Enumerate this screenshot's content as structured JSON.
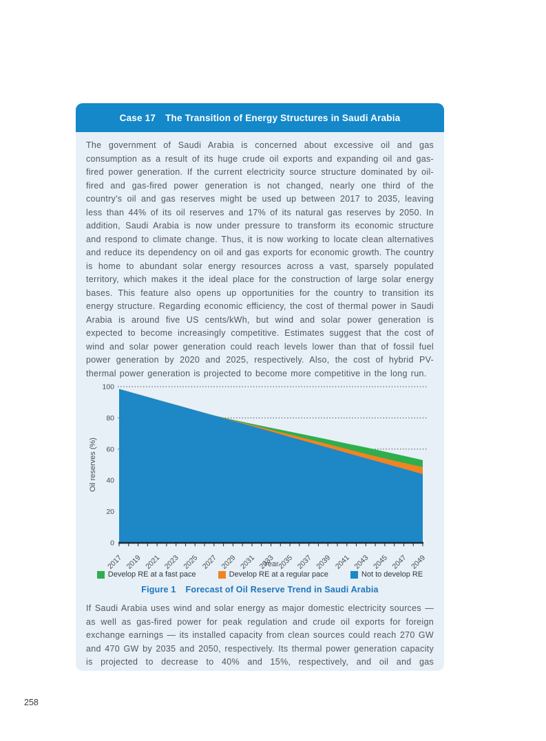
{
  "page": {
    "number": "258"
  },
  "card": {
    "header": {
      "case_label": "Case 17",
      "title": "The Transition of Energy Structures in Saudi Arabia"
    },
    "paragraph1": "The government of Saudi Arabia is concerned about excessive oil and gas consumption as a result of its huge crude oil exports and expanding oil and gas-fired power generation. If the current electricity source structure dominated by oil-fired and gas-fired power generation is not changed, nearly one third of the country's oil and gas reserves might be used up between 2017 to 2035, leaving less than 44% of its oil reserves and 17% of its natural gas reserves by 2050. In addition, Saudi Arabia is now under pressure to transform its economic structure and respond to climate change. Thus, it is now working to locate clean alternatives and reduce its dependency on oil and gas exports for economic growth. The country is home to abundant solar energy resources across a vast, sparsely populated territory, which makes it the ideal place for the construction of large solar energy bases. This feature also opens up opportunities for the country to transition its energy structure. Regarding economic efficiency, the cost of thermal power in Saudi Arabia is around five US cents/kWh, but wind and solar power generation is expected to become increasingly competitive. Estimates suggest that the cost of wind and solar power generation could reach levels lower than that of fossil fuel power generation by 2020 and 2025, respectively. Also, the cost of hybrid PV-thermal power generation is projected to become more competitive in the long run.",
    "figure_caption": {
      "label": "Figure 1",
      "title": "Forecast of Oil Reserve Trend in Saudi Arabia"
    },
    "paragraph2": "If Saudi Arabia uses wind and solar energy as major domestic electricity sources — as well as gas-fired power for peak regulation and crude oil exports for foreign exchange earnings — its installed capacity from clean sources could reach 270 GW and 470 GW by 2035 and 2050, respectively. Its thermal power generation capacity is projected to decrease to 40% and 15%, respectively, and oil and gas"
  },
  "chart_data": {
    "type": "area",
    "title": "",
    "xlabel": "Year",
    "ylabel": "Oil reserves (%)",
    "ylim": [
      0,
      100
    ],
    "yticks": [
      0,
      20,
      40,
      60,
      80,
      100
    ],
    "gridlines_at": [
      60,
      80,
      100
    ],
    "grid_style": "dotted",
    "legend_position": "bottom",
    "x": [
      2017,
      2019,
      2021,
      2023,
      2025,
      2027,
      2029,
      2031,
      2033,
      2035,
      2037,
      2039,
      2041,
      2043,
      2045,
      2047,
      2049
    ],
    "xtick_labels": [
      "2017",
      "2019",
      "2021",
      "2023",
      "2025",
      "2027",
      "2029",
      "2031",
      "2033",
      "2035",
      "2037",
      "2039",
      "2041",
      "2043",
      "2045",
      "2047",
      "2049"
    ],
    "minor_tick_every_year": true,
    "series": [
      {
        "name": "Develop RE at a fast pace",
        "color": "#2FAE4D",
        "values": [
          98.5,
          95.1,
          91.7,
          88.3,
          84.9,
          81.6,
          78.8,
          76.2,
          73.7,
          71.2,
          68.7,
          66.2,
          63.6,
          61.1,
          58.4,
          55.7,
          53.0
        ]
      },
      {
        "name": "Develop RE at a regular pace",
        "color": "#F08423",
        "values": [
          98.5,
          95.1,
          91.7,
          88.3,
          84.9,
          81.5,
          78.4,
          75.4,
          72.4,
          69.4,
          66.3,
          63.2,
          60.1,
          57.0,
          54.0,
          51.2,
          48.5
        ]
      },
      {
        "name": "Not to develop RE",
        "color": "#1E87C5",
        "values": [
          98.5,
          95.1,
          91.7,
          88.3,
          84.9,
          81.5,
          78.1,
          74.7,
          71.3,
          67.8,
          64.4,
          61.0,
          57.6,
          54.2,
          50.8,
          47.4,
          44.0
        ]
      }
    ],
    "colors": {
      "header_bar": "#1588C9",
      "card_background": "#E7EFF7",
      "axis": "#1B2838",
      "gridline": "#4D4D4D",
      "caption_blue": "#1B76BE"
    }
  }
}
